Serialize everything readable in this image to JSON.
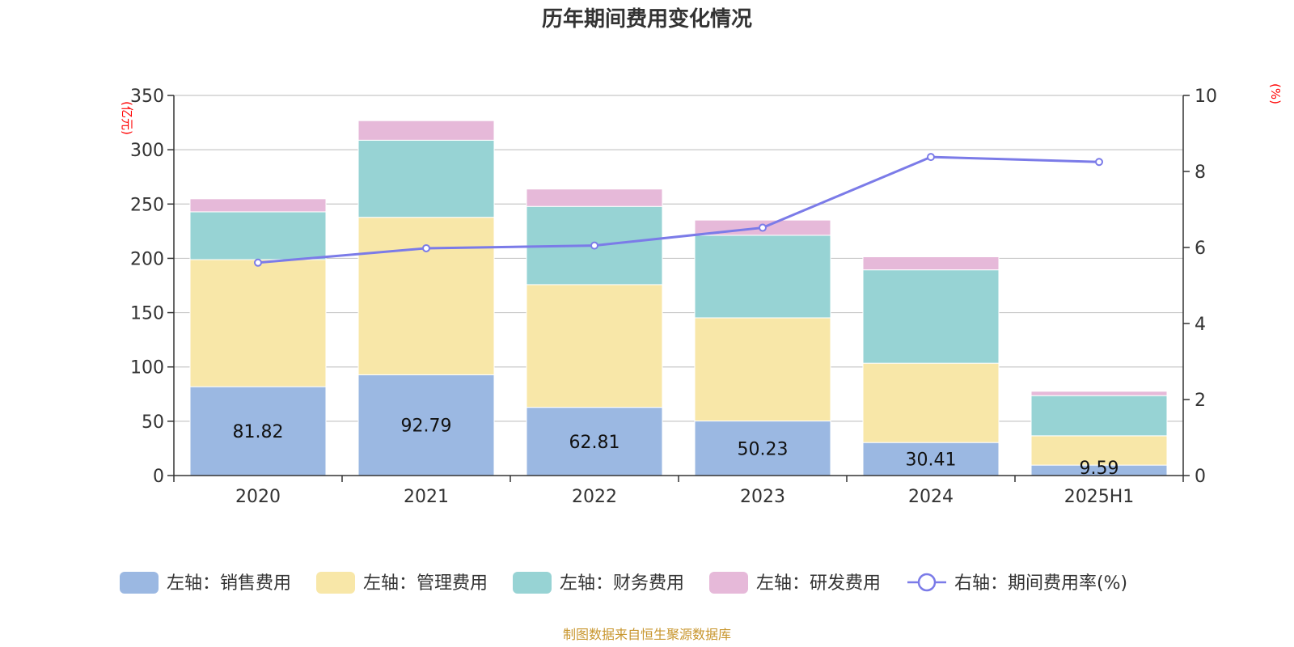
{
  "chart_data": {
    "type": "bar",
    "title": "历年期间费用变化情况",
    "categories": [
      "2020",
      "2021",
      "2022",
      "2023",
      "2024",
      "2025H1"
    ],
    "y_left": {
      "unit": "(亿元)",
      "range": [
        0,
        350
      ],
      "ticks": [
        "0",
        "50",
        "100",
        "150",
        "200",
        "250",
        "300",
        "350"
      ]
    },
    "y_right": {
      "unit": "(%)",
      "range": [
        0,
        10
      ],
      "ticks": [
        "0",
        "2",
        "4",
        "6",
        "8",
        "10"
      ]
    },
    "grid": true,
    "legend_position": "bottom",
    "series": [
      {
        "name": "左轴：销售费用",
        "type": "bar",
        "stack": "total",
        "axis": "left",
        "color": "#9bb8e2",
        "values": [
          81.82,
          92.79,
          62.81,
          50.23,
          30.41,
          9.59
        ],
        "labels": [
          "81.82",
          "92.79",
          "62.81",
          "50.23",
          "30.41",
          "9.59"
        ]
      },
      {
        "name": "左轴：管理费用",
        "type": "bar",
        "stack": "total",
        "axis": "left",
        "color": "#f8e7a8",
        "values": [
          117,
          145,
          113,
          95,
          73,
          27
        ]
      },
      {
        "name": "左轴：财务费用",
        "type": "bar",
        "stack": "total",
        "axis": "left",
        "color": "#97d3d4",
        "values": [
          44,
          71,
          72,
          76,
          86,
          37
        ]
      },
      {
        "name": "左轴：研发费用",
        "type": "bar",
        "stack": "total",
        "axis": "left",
        "color": "#e6b9d9",
        "values": [
          12,
          18,
          16,
          14,
          12,
          4
        ]
      },
      {
        "name": "右轴：期间费用率(%)",
        "type": "line",
        "axis": "right",
        "color": "#7b7be8",
        "values": [
          5.6,
          5.98,
          6.05,
          6.52,
          8.38,
          8.25
        ]
      }
    ]
  },
  "source": "制图数据来自恒生聚源数据库"
}
